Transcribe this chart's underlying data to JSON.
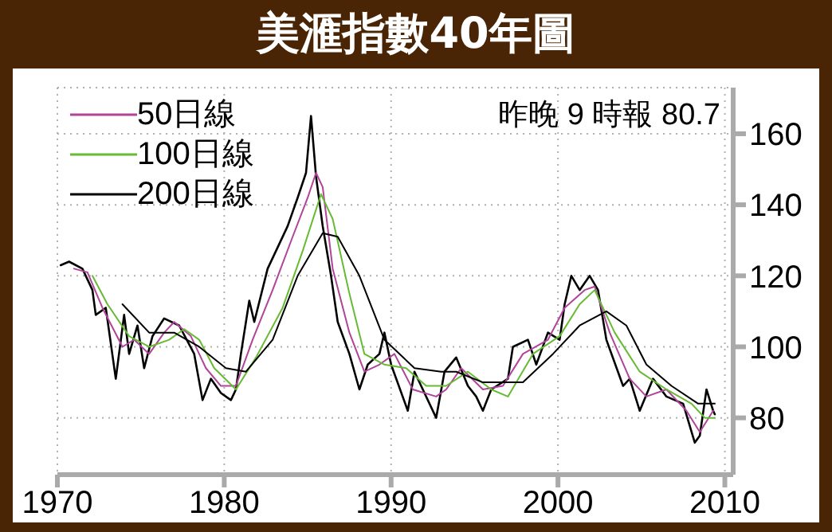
{
  "chart_data": {
    "type": "line",
    "title": "美滙指數40年圖",
    "annotations": [
      "昨晚 9 時報 80.7"
    ],
    "xlim": [
      1970,
      2010.5
    ],
    "xticks": [
      1970,
      1980,
      1990,
      2000,
      2010
    ],
    "ylim": [
      64,
      173
    ],
    "yticks": [
      80,
      100,
      120,
      140,
      160
    ],
    "grid": true,
    "legend": "top left",
    "marker": "none",
    "line_style": "solid",
    "series": [
      {
        "color": "#000000",
        "x": [
          1970.2,
          1970.7,
          1971.5,
          1972.1,
          1972.3,
          1972.9,
          1973.5,
          1974,
          1974.3,
          1974.8,
          1975.2,
          1975.7,
          1976.4,
          1977.3,
          1978.2,
          1978.7,
          1979.2,
          1979.8,
          1980.4,
          1980.7,
          1981,
          1981.5,
          1981.8,
          1982.6,
          1983.1,
          1983.8,
          1984.4,
          1984.9,
          1985.2,
          1985.5,
          1985.9,
          1986.4,
          1986.8,
          1987.5,
          1988.1,
          1988.6,
          1989.3,
          1989.6,
          1990,
          1991,
          1991.4,
          1992.7,
          1993.2,
          1993.9,
          1994.6,
          1995.1,
          1995.5,
          1996,
          1997,
          1997.3,
          1998.2,
          1998.7,
          1999.4,
          2000.1,
          2000.4,
          2000.8,
          2001.3,
          2001.9,
          2002.4,
          2002.9,
          2003.9,
          2004.3,
          2004.9,
          2005.7,
          2006.5,
          2007.5,
          2008.2,
          2008.5,
          2008.9,
          2009.3,
          2009.4
        ],
        "values": [
          123,
          124,
          122,
          116,
          109,
          111,
          91,
          109,
          98,
          106,
          94,
          103,
          108,
          106,
          98,
          85,
          91,
          87,
          85,
          88,
          98,
          113,
          107,
          122,
          127,
          134,
          142,
          149,
          165,
          148,
          134,
          120,
          107,
          98,
          88,
          95,
          98,
          104,
          95,
          82,
          93,
          80,
          93,
          97,
          89,
          86,
          82,
          88,
          91,
          100,
          102,
          95,
          104,
          102,
          112,
          120,
          116,
          120,
          116,
          102,
          89,
          91,
          82,
          91,
          86,
          84,
          73,
          75,
          88,
          82,
          81
        ]
      },
      {
        "name": "50日線",
        "color": "#b0449a",
        "x": [
          1971,
          1971.8,
          1972.7,
          1973.9,
          1974.6,
          1975.5,
          1976.4,
          1977,
          1978,
          1978.9,
          1979.8,
          1980.7,
          1981.7,
          1982.9,
          1984.1,
          1985,
          1985.5,
          1985.9,
          1986.5,
          1987.5,
          1988.4,
          1989.3,
          1990.2,
          1991.3,
          1992.7,
          1993.3,
          1994.2,
          1995.5,
          1996.7,
          1997.9,
          1999.4,
          2000.4,
          2001.6,
          2002.2,
          2003.1,
          2004.3,
          2005.3,
          2006.5,
          2007.7,
          2008.5,
          2009.3
        ],
        "values": [
          122,
          121,
          111,
          100,
          102,
          98,
          104,
          107,
          103,
          94,
          89,
          89,
          102,
          116,
          131,
          142,
          149,
          145,
          122,
          104,
          93,
          95,
          98,
          88,
          86,
          88,
          94,
          88,
          89,
          98,
          102,
          111,
          116,
          117,
          104,
          91,
          86,
          88,
          82,
          76,
          82
        ]
      },
      {
        "name": "100日線",
        "color": "#66bb33",
        "x": [
          1972.1,
          1973,
          1974.3,
          1975.5,
          1976.7,
          1977.6,
          1978.5,
          1979.4,
          1980.7,
          1981.9,
          1983.5,
          1984.7,
          1985.8,
          1986.5,
          1987.5,
          1988.4,
          1989.6,
          1990.9,
          1992.1,
          1993.3,
          1994.6,
          1996,
          1997,
          1998.5,
          2000.1,
          2001.3,
          2002.2,
          2003.4,
          2004.9,
          2006.5,
          2008,
          2008.8,
          2009.4
        ],
        "values": [
          120,
          112,
          103,
          100,
          102,
          105,
          102,
          94,
          88,
          97,
          111,
          127,
          143,
          136,
          115,
          98,
          95,
          94,
          89,
          89,
          93,
          88,
          86,
          98,
          103,
          112,
          116,
          104,
          93,
          88,
          84,
          80,
          80
        ]
      },
      {
        "name": "200日線",
        "color": "#000000",
        "x": [
          1973.9,
          1975.5,
          1977,
          1978.5,
          1980.1,
          1981.3,
          1982.9,
          1984.4,
          1985.9,
          1986.8,
          1988.1,
          1989.6,
          1991.4,
          1993,
          1993.9,
          1995.5,
          1997.9,
          1999.7,
          2001.3,
          2002.9,
          2004.1,
          2005.3,
          2006.8,
          2008.4,
          2009.4
        ],
        "values": [
          112,
          104,
          104,
          100,
          94,
          93,
          102,
          120,
          132,
          131,
          120,
          102,
          94,
          93,
          93,
          90,
          90,
          98,
          106,
          110,
          106,
          95,
          89,
          84,
          84
        ]
      }
    ]
  }
}
